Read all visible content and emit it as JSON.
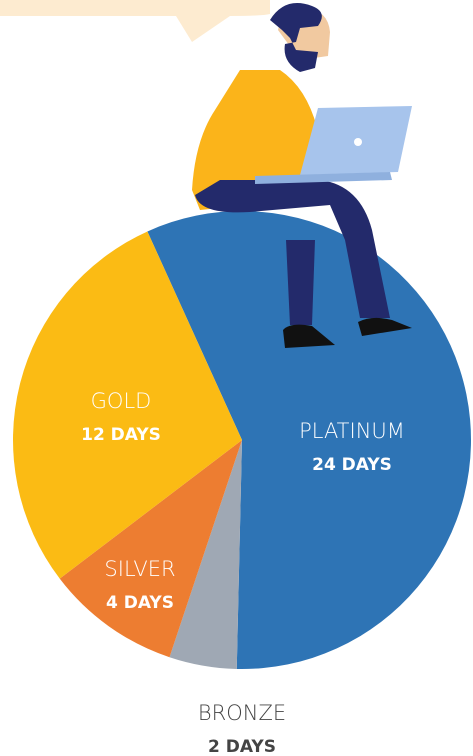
{
  "chart_data": {
    "type": "pie",
    "categories": [
      "PLATINUM",
      "BRONZE",
      "SILVER",
      "GOLD"
    ],
    "values": [
      24,
      2,
      4,
      12
    ],
    "value_labels": [
      "24 DAYS",
      "2 DAYS",
      "4 DAYS",
      "12 DAYS"
    ],
    "colors": [
      "#2e74b5",
      "#9fa8b4",
      "#ed7d31",
      "#fbbb14"
    ]
  }
}
